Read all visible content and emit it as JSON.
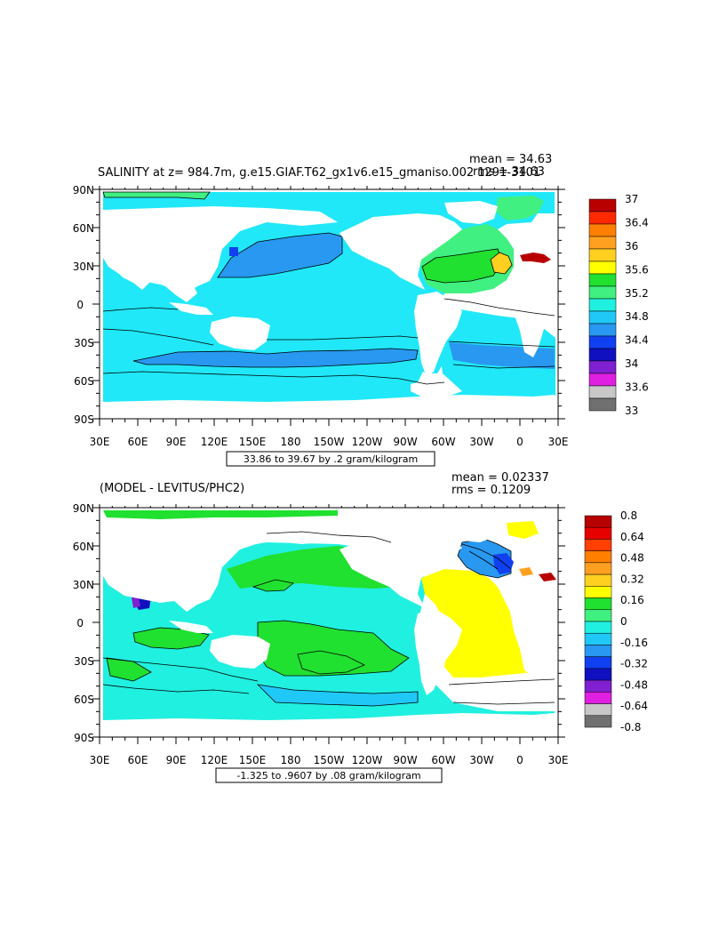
{
  "top": {
    "title": "SALINITY at z= 984.7m, g.e15.GIAF.T62_gx1v6.e15_gmaniso.002 1291-3101",
    "mean": "mean = 34.63",
    "rms": "rms = 34.63",
    "range": "33.86 to 39.67 by .2 gram/kilogram",
    "legend_labels": [
      "37",
      "36.4",
      "36",
      "35.6",
      "35.2",
      "34.8",
      "34.4",
      "34",
      "33.6",
      "33"
    ],
    "legend_colors": [
      "#b80000",
      "#ff2a00",
      "#ff8000",
      "#ffa020",
      "#ffd020",
      "#ffff00",
      "#20e030",
      "#40f080",
      "#20f0e0",
      "#20c8f8",
      "#2898f0",
      "#1040f0",
      "#1010c0",
      "#8020d0",
      "#e020e0",
      "#c8c8c8",
      "#707070"
    ]
  },
  "bottom": {
    "title": "(MODEL - LEVITUS/PHC2)",
    "mean": "mean = 0.02337",
    "rms": "rms = 0.1209",
    "range": "-1.325 to .9607 by .08 gram/kilogram",
    "legend_labels": [
      "0.8",
      "0.64",
      "0.48",
      "0.32",
      "0.16",
      "0",
      "-0.16",
      "-0.32",
      "-0.48",
      "-0.64",
      "-0.8"
    ],
    "legend_colors": [
      "#b80000",
      "#e80000",
      "#ff4000",
      "#ff8000",
      "#ffa020",
      "#ffd020",
      "#ffff00",
      "#20e030",
      "#40f080",
      "#20f0e0",
      "#20c8f8",
      "#2898f0",
      "#1040f0",
      "#1010c0",
      "#8020d0",
      "#e020e0",
      "#c8c8c8",
      "#707070"
    ]
  },
  "lat_labels": [
    "90N",
    "60N",
    "30N",
    "0",
    "30S",
    "60S",
    "90S"
  ],
  "lon_labels": [
    "30E",
    "60E",
    "90E",
    "120E",
    "150E",
    "180",
    "150W",
    "120W",
    "90W",
    "60W",
    "30W",
    "0",
    "30E"
  ],
  "colors": {
    "ocean_top": "#20e8f8",
    "ocean_bottom": "#20f0e0",
    "land": "#ffffff"
  }
}
